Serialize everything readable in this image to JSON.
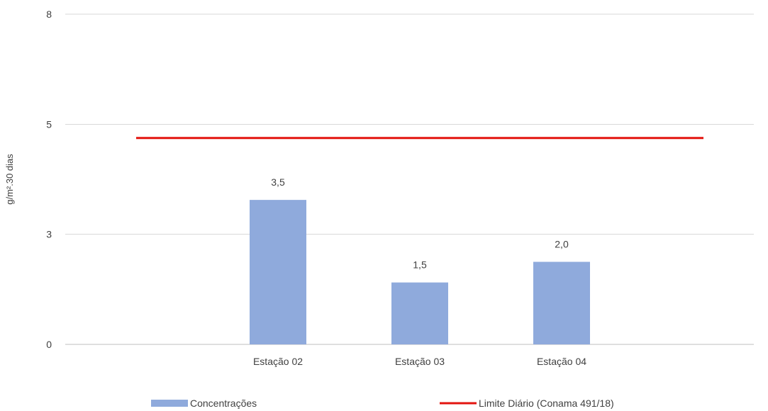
{
  "chart_data": {
    "type": "bar",
    "title": "",
    "xlabel": "",
    "ylabel": "g/m².30 dias",
    "ylim": [
      0,
      8
    ],
    "yticks": [
      {
        "value": 0,
        "label": "0"
      },
      {
        "value": 2.67,
        "label": "3"
      },
      {
        "value": 5.33,
        "label": "5"
      },
      {
        "value": 8,
        "label": "8"
      }
    ],
    "categories": [
      "Estação 02",
      "Estação 03",
      "Estação 04"
    ],
    "series": [
      {
        "name": "Concentrações",
        "kind": "bar",
        "color": "#8FAADC",
        "values": [
          3.5,
          1.5,
          2.0
        ],
        "labels": [
          "3,5",
          "1,5",
          "2,0"
        ]
      },
      {
        "name": "Limite Diário (Conama 491/18)",
        "kind": "line",
        "color": "#E3140F",
        "value": 5
      }
    ],
    "grid": true,
    "legend": "bottom"
  }
}
